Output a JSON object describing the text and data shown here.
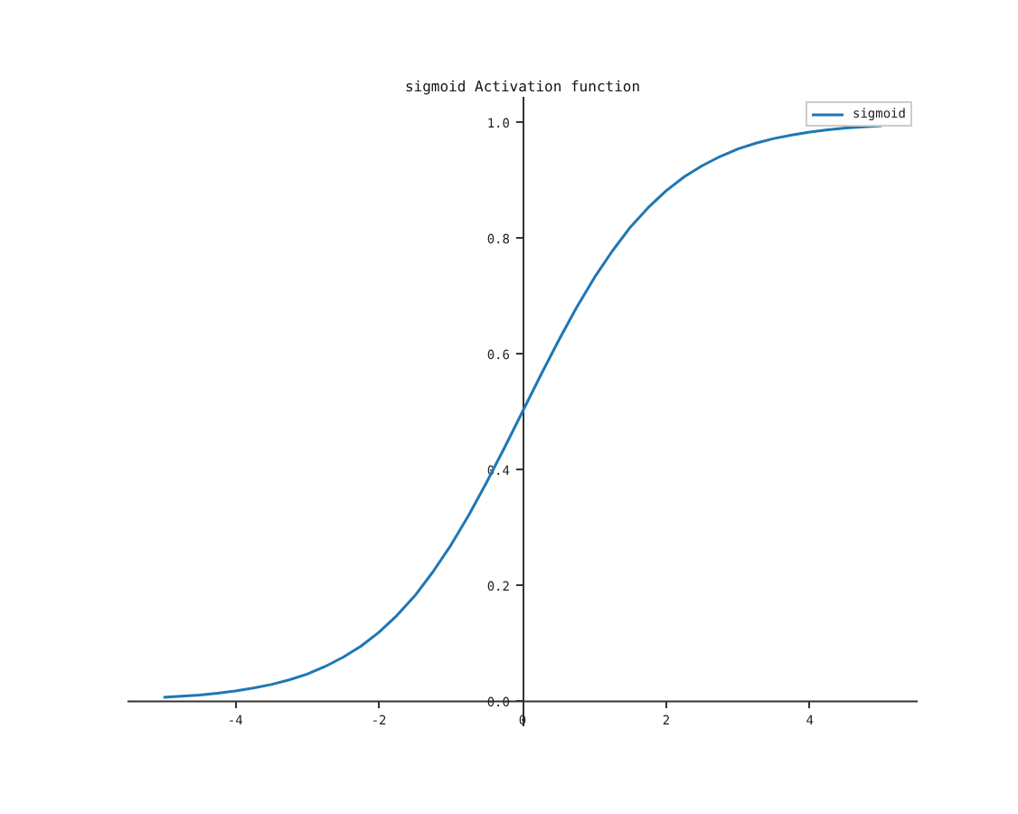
{
  "chart_data": {
    "type": "line",
    "title": "sigmoid Activation function",
    "x": [
      -5,
      -4.75,
      -4.5,
      -4.25,
      -4,
      -3.75,
      -3.5,
      -3.25,
      -3,
      -2.75,
      -2.5,
      -2.25,
      -2,
      -1.75,
      -1.5,
      -1.25,
      -1,
      -0.75,
      -0.5,
      -0.25,
      0,
      0.25,
      0.5,
      0.75,
      1,
      1.25,
      1.5,
      1.75,
      2,
      2.25,
      2.5,
      2.75,
      3,
      3.25,
      3.5,
      3.75,
      4,
      4.25,
      4.5,
      4.75,
      5
    ],
    "series": [
      {
        "name": "sigmoid",
        "color": "#1f77b4",
        "values": [
          0.007,
          0.009,
          0.011,
          0.014,
          0.018,
          0.023,
          0.029,
          0.037,
          0.047,
          0.06,
          0.076,
          0.095,
          0.119,
          0.148,
          0.182,
          0.223,
          0.269,
          0.321,
          0.378,
          0.438,
          0.5,
          0.562,
          0.622,
          0.679,
          0.731,
          0.777,
          0.818,
          0.852,
          0.881,
          0.905,
          0.924,
          0.94,
          0.953,
          0.963,
          0.971,
          0.977,
          0.982,
          0.986,
          0.989,
          0.991,
          0.993
        ]
      }
    ],
    "xlim": [
      -5.5,
      5.5
    ],
    "ylim": [
      -0.043,
      1.043
    ],
    "xticks": [
      -4,
      -2,
      0,
      2,
      4
    ],
    "yticks": [
      {
        "value": 0,
        "label": "0.0"
      },
      {
        "value": 0.2,
        "label": "0.2"
      },
      {
        "value": 0.4,
        "label": "0.4"
      },
      {
        "value": 0.6,
        "label": "0.6"
      },
      {
        "value": 0.8,
        "label": "0.8"
      },
      {
        "value": 1,
        "label": "1.0"
      }
    ],
    "legend": "top right",
    "marker": "none",
    "line_style": "solid"
  }
}
